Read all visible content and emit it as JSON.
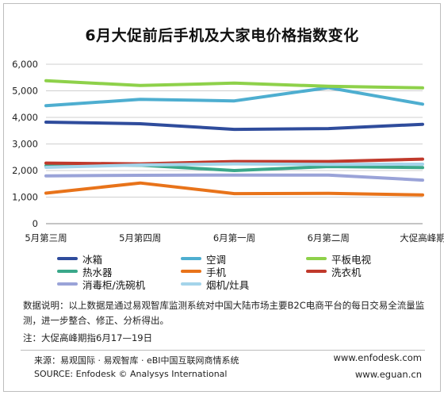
{
  "chart_data": {
    "type": "line",
    "title": "6月大促前后手机及大家电价格指数变化",
    "categories": [
      "5月第三周",
      "5月第四周",
      "6月第一周",
      "6月第二周",
      "大促高峰期"
    ],
    "ylim": [
      0,
      6000
    ],
    "yticks": [
      "0",
      "1,000",
      "2,000",
      "3,000",
      "4,000",
      "5,000",
      "6,000"
    ],
    "ytick_values": [
      0,
      1000,
      2000,
      3000,
      4000,
      5000,
      6000
    ],
    "grid": true,
    "legend_position": "bottom",
    "series": [
      {
        "name": "冰箱",
        "color": "#2f4c9c",
        "values": [
          3820,
          3760,
          3550,
          3580,
          3740
        ]
      },
      {
        "name": "空调",
        "color": "#4eaed0",
        "values": [
          4440,
          4680,
          4620,
          5120,
          4500
        ]
      },
      {
        "name": "平板电视",
        "color": "#8ed14a",
        "values": [
          5380,
          5200,
          5290,
          5170,
          5110
        ]
      },
      {
        "name": "热水器",
        "color": "#3aa88a",
        "values": [
          2180,
          2200,
          2000,
          2150,
          2110
        ]
      },
      {
        "name": "手机",
        "color": "#e8731a",
        "values": [
          1150,
          1530,
          1130,
          1140,
          1080
        ]
      },
      {
        "name": "洗衣机",
        "color": "#c0392b",
        "values": [
          2280,
          2250,
          2340,
          2340,
          2430
        ]
      },
      {
        "name": "消毒柜/洗碗机",
        "color": "#9aa3d8",
        "values": [
          1800,
          1820,
          1830,
          1830,
          1640
        ]
      },
      {
        "name": "烟机/灶具",
        "color": "#a4d4ea",
        "values": [
          2120,
          2210,
          2250,
          2230,
          2240
        ]
      }
    ]
  },
  "notes": {
    "description": "数据说明：以上数据是通过易观智库监测系统对中国大陆市场主要B2C电商平台的每日交易全流量监测，进一步整合、修正、分析得出。",
    "footnote": "注：大促高峰期指6月17—19日"
  },
  "footer": {
    "source_cn": "来源：易观国际 · 易观智库 · eBI中国互联网商情系统",
    "source_en": "SOURCE: Enfodesk © Analysys International",
    "url1": "www.enfodesk.com",
    "url2": "www.eguan.cn"
  }
}
